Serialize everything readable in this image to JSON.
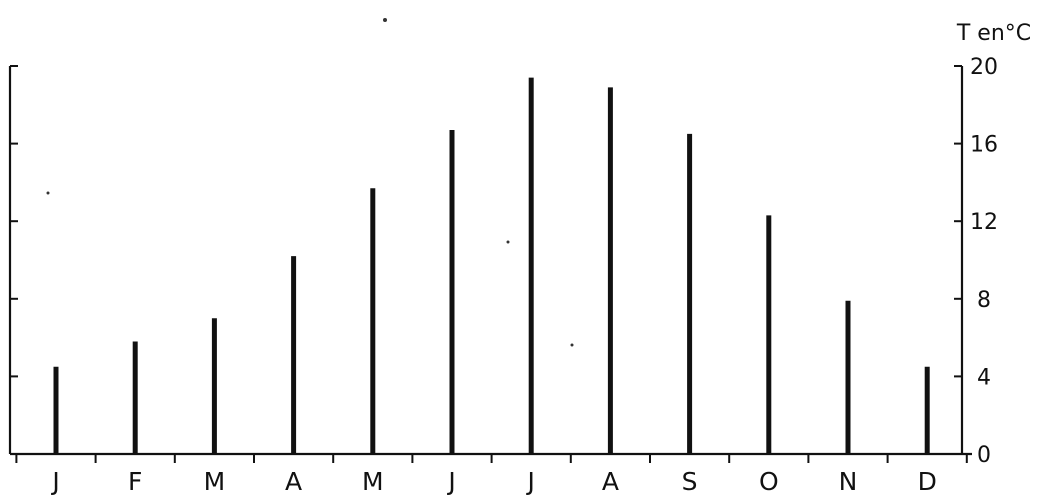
{
  "chart_data": {
    "type": "bar",
    "categories": [
      "J",
      "F",
      "M",
      "A",
      "M",
      "J",
      "J",
      "A",
      "S",
      "O",
      "N",
      "D"
    ],
    "values": [
      4.5,
      5.8,
      7.0,
      10.2,
      13.7,
      16.7,
      19.4,
      18.9,
      16.5,
      12.3,
      7.9,
      4.5
    ],
    "ylabel": "T en°C",
    "ylim": [
      0,
      20
    ],
    "yticks": [
      "0",
      "4",
      "8",
      "12",
      "16",
      "20"
    ],
    "grid": false
  }
}
